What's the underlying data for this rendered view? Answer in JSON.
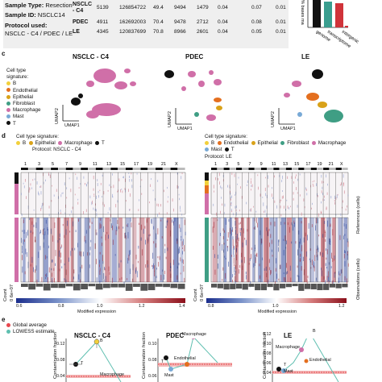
{
  "info": {
    "sample_type_label": "Sample Type:",
    "sample_type_value": "Resection",
    "sample_id_label": "Sample ID:",
    "sample_id_value": "NSCLC14",
    "protocol_label": "Protocol used:",
    "protocol_value": "NSCLC - C4 / PDEC / LE"
  },
  "table": {
    "rows": [
      {
        "name_line1": "NSCLC",
        "name_line2": "- C4",
        "values": [
          "5139",
          "126854722",
          "49.4",
          "9494",
          "1479",
          "0.04",
          "0.07",
          "0.01"
        ]
      },
      {
        "name_line1": "PDEC",
        "name_line2": "",
        "values": [
          "4911",
          "162692003",
          "70.4",
          "9478",
          "2712",
          "0.04",
          "0.08",
          "0.01"
        ]
      },
      {
        "name_line1": "LE",
        "name_line2": "",
        "values": [
          "4345",
          "120837699",
          "70.8",
          "8966",
          "2601",
          "0.04",
          "0.05",
          "0.01"
        ]
      }
    ]
  },
  "bases_chart": {
    "ylabel": "% bases ma",
    "categories": [
      "genome",
      "transcriptome",
      "intergenic"
    ],
    "colors": [
      "#111111",
      "#3a9e8f",
      "#d0333a"
    ]
  },
  "panel_letters": {
    "c": "c",
    "d": "d",
    "e": "e"
  },
  "umap": {
    "titles": [
      "NSCLC - C4",
      "PDEC",
      "LE"
    ],
    "axis_x": "UMAP1",
    "axis_y": "UMAP2"
  },
  "legend_c": {
    "title_line1": "Cell type",
    "title_line2": "signature:",
    "items": [
      {
        "label": "B",
        "color": "#f2d03b"
      },
      {
        "label": "Endothelial",
        "color": "#e46f1f"
      },
      {
        "label": "Epithelial",
        "color": "#d9a219"
      },
      {
        "label": "Fibroblast",
        "color": "#3f9e84"
      },
      {
        "label": "Macrophage",
        "color": "#d06fa8"
      },
      {
        "label": "Mast",
        "color": "#78a9d6"
      },
      {
        "label": "T",
        "color": "#111111"
      }
    ]
  },
  "heatmap_left": {
    "legend_title": "Cell type signature:",
    "legend_items": [
      {
        "label": "B",
        "color": "#f2d03b"
      },
      {
        "label": "Epithelial",
        "color": "#d9a219"
      },
      {
        "label": "Macrophage",
        "color": "#d06fa8"
      },
      {
        "label": "T",
        "color": "#111111"
      }
    ],
    "protocol": "Protocol: NSCLC - C4",
    "chromosomes": [
      "1",
      "3",
      "5",
      "7",
      "9",
      "11",
      "13",
      "15",
      "17",
      "19",
      "21",
      "X"
    ],
    "count_label": "Count",
    "count_tick": "0 6e+07"
  },
  "heatmap_right": {
    "legend_title": "Cell type signature:",
    "legend_items": [
      {
        "label": "B",
        "color": "#f2d03b"
      },
      {
        "label": "Endothelial",
        "color": "#e46f1f"
      },
      {
        "label": "Epithelial",
        "color": "#d9a219"
      },
      {
        "label": "Fibroblast",
        "color": "#3f9e84"
      },
      {
        "label": "Macrophage",
        "color": "#d06fa8"
      },
      {
        "label": "Mast",
        "color": "#78a9d6"
      },
      {
        "label": "T",
        "color": "#111111"
      }
    ],
    "protocol": "Protocol: LE",
    "chromosomes": [
      "1",
      "3",
      "5",
      "7",
      "9",
      "11",
      "13",
      "15",
      "17",
      "19",
      "21",
      "X"
    ],
    "count_label": "Count",
    "count_tick": "0 6e+07",
    "references_label": "References (cells)",
    "observations_label": "Observations (cells)"
  },
  "colorbar": {
    "ticks": [
      "0.6",
      "0.8",
      "1.0",
      "1.2",
      "1.4"
    ],
    "label": "Modified expression",
    "ticks_right": [
      "0.8",
      "1.0",
      "1.2"
    ]
  },
  "legend_e": {
    "items": [
      {
        "label": "Global average",
        "color": "#e8474e"
      },
      {
        "label": "LOWESS estimate",
        "color": "#5fbfb0"
      }
    ]
  },
  "contamination": {
    "ylabel": "Contamination fraction",
    "panels": [
      {
        "title": "NSCLC - C4",
        "labels": [
          "B",
          "T",
          "Macrophage"
        ],
        "ticks": [
          "0.12",
          "0.08",
          "0.04"
        ]
      },
      {
        "title": "PDEC",
        "labels": [
          "Macrophage",
          "T",
          "Endothelial",
          "Mast"
        ],
        "ticks": [
          "0.10",
          "0.08",
          "0.06"
        ]
      },
      {
        "title": "LE",
        "labels": [
          "B",
          "Macrophage",
          "T",
          "Mast",
          "Endothelial"
        ],
        "ticks": [
          "0.12",
          "0.10",
          "0.08",
          "0.06",
          "0.04"
        ]
      }
    ]
  }
}
